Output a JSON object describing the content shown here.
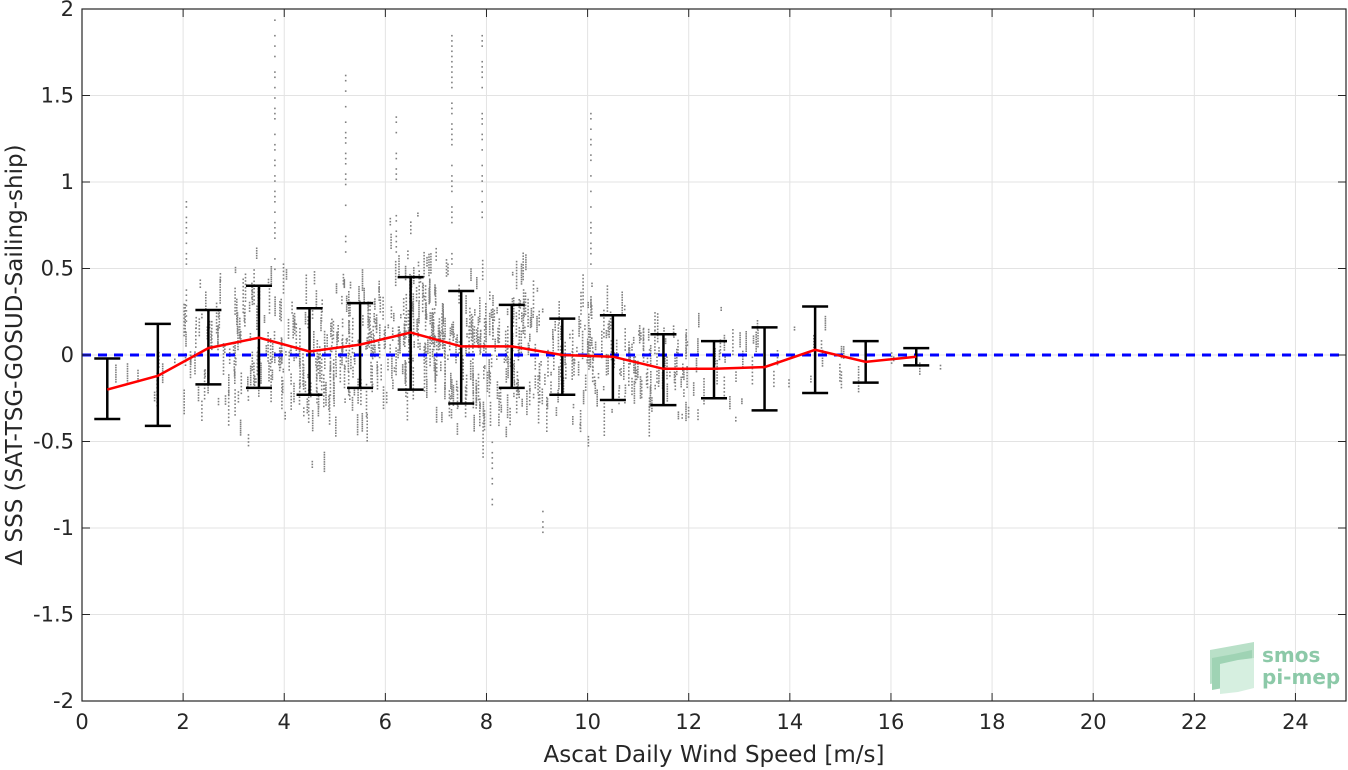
{
  "chart_data": {
    "type": "scatter",
    "xlabel": "Ascat Daily Wind Speed [m/s]",
    "ylabel": "Δ SSS (SAT-TSG-GOSUD-Sailing-ship)",
    "xlim": [
      0,
      25
    ],
    "ylim": [
      -2,
      2
    ],
    "xticks": [
      "0",
      "2",
      "4",
      "6",
      "8",
      "10",
      "12",
      "14",
      "16",
      "18",
      "20",
      "22",
      "24"
    ],
    "yticks": [
      "-2",
      "-1.5",
      "-1",
      "-0.5",
      "0",
      "0.5",
      "1",
      "1.5",
      "2"
    ],
    "grid": true,
    "zero_line": {
      "y": 0,
      "color": "#0000ff",
      "style": "dashed"
    },
    "scatter_color": "#808080",
    "mean_color": "#ff0000",
    "errorbar_color": "#000000",
    "series": [
      {
        "x": [
          0.5,
          1.5,
          2.5,
          3.5,
          4.5,
          5.5,
          6.5,
          7.5,
          8.5,
          9.5,
          10.5,
          11.5,
          12.5,
          13.5,
          14.5,
          15.5,
          16.5
        ],
        "mean": [
          -0.2,
          -0.12,
          0.04,
          0.1,
          0.02,
          0.06,
          0.13,
          0.05,
          0.05,
          0.0,
          -0.01,
          -0.08,
          -0.08,
          -0.07,
          0.03,
          -0.04,
          -0.01
        ],
        "upper": [
          -0.02,
          0.18,
          0.26,
          0.4,
          0.27,
          0.3,
          0.45,
          0.37,
          0.29,
          0.21,
          0.23,
          0.12,
          0.08,
          0.16,
          0.28,
          0.08,
          0.04
        ],
        "lower": [
          -0.37,
          -0.41,
          -0.17,
          -0.19,
          -0.23,
          -0.19,
          -0.2,
          -0.28,
          -0.19,
          -0.23,
          -0.26,
          -0.29,
          -0.25,
          -0.32,
          -0.22,
          -0.16,
          -0.06
        ]
      }
    ]
  },
  "logo": {
    "line1": "smos",
    "line2": "pi-mep",
    "color": "#8cc9a8"
  }
}
